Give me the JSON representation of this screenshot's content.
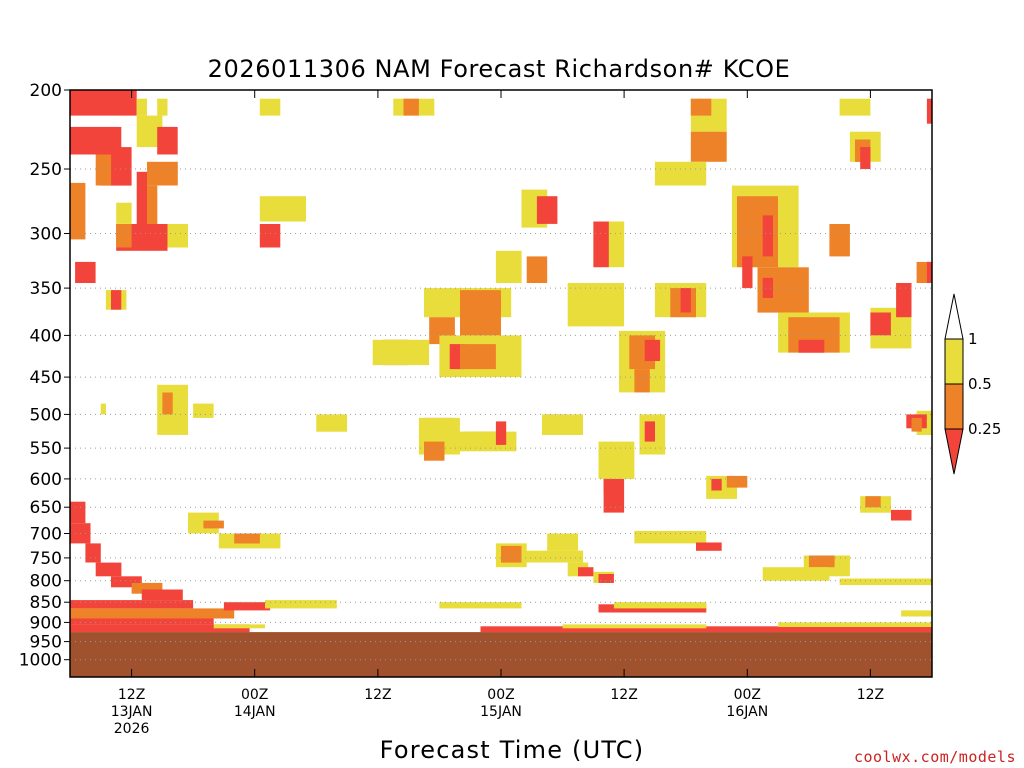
{
  "chart_data": {
    "type": "heatmap",
    "title": "2026011306 NAM Forecast Richardson# KCOE",
    "xlabel": "Forecast Time (UTC)",
    "ylabel": "",
    "y_scale": "log",
    "y_inverted": true,
    "y_ticks": [
      200,
      250,
      300,
      350,
      400,
      450,
      500,
      550,
      600,
      650,
      700,
      750,
      800,
      850,
      900,
      950,
      1000
    ],
    "ylim": [
      200,
      1050
    ],
    "x_ticks": [
      {
        "hour": 6,
        "lines": [
          "12Z",
          "13JAN",
          "2026"
        ]
      },
      {
        "hour": 18,
        "lines": [
          "00Z",
          "14JAN"
        ]
      },
      {
        "hour": 30,
        "lines": [
          "12Z"
        ]
      },
      {
        "hour": 42,
        "lines": [
          "00Z",
          "15JAN"
        ]
      },
      {
        "hour": 54,
        "lines": [
          "12Z"
        ]
      },
      {
        "hour": 66,
        "lines": [
          "00Z",
          "16JAN"
        ]
      },
      {
        "hour": 78,
        "lines": [
          "12Z"
        ]
      }
    ],
    "xlim": [
      0,
      84
    ],
    "levels_legend": [
      {
        "label": "1",
        "value": 1,
        "color": "#e8dd3a"
      },
      {
        "label": "0.5",
        "value": 0.5,
        "color": "#ee8228"
      },
      {
        "label": "0.25",
        "value": 0.25,
        "color": "#f2443a"
      }
    ],
    "arrow_top_color": "#ffffff",
    "arrow_bottom_color": "#f2443a",
    "ground_color": "#a0512d",
    "ground_top_pressure": 925,
    "grid_lines": "dotted horizontal at pressure ticks",
    "cells": [
      {
        "x0": 0,
        "x1": 6.5,
        "p0": 200,
        "p1": 215,
        "c": "r"
      },
      {
        "x0": 0,
        "x1": 5,
        "p0": 222,
        "p1": 240,
        "c": "r"
      },
      {
        "x0": 3,
        "x1": 6,
        "p0": 235,
        "p1": 262,
        "c": "r"
      },
      {
        "x0": 2.5,
        "x1": 4,
        "p0": 240,
        "p1": 262,
        "c": "o"
      },
      {
        "x0": 6.5,
        "x1": 9,
        "p0": 215,
        "p1": 235,
        "c": "y"
      },
      {
        "x0": 8.5,
        "x1": 10.5,
        "p0": 222,
        "p1": 240,
        "c": "r"
      },
      {
        "x0": 7.5,
        "x1": 10.5,
        "p0": 245,
        "p1": 262,
        "c": "o"
      },
      {
        "x0": 6.5,
        "x1": 7.5,
        "p0": 252,
        "p1": 295,
        "c": "r"
      },
      {
        "x0": 7.5,
        "x1": 8.5,
        "p0": 262,
        "p1": 295,
        "c": "o"
      },
      {
        "x0": 4.5,
        "x1": 6,
        "p0": 275,
        "p1": 292,
        "c": "y"
      },
      {
        "x0": 0,
        "x1": 1.5,
        "p0": 260,
        "p1": 305,
        "c": "o"
      },
      {
        "x0": 4.5,
        "x1": 9.5,
        "p0": 292,
        "p1": 315,
        "c": "r"
      },
      {
        "x0": 4.5,
        "x1": 6,
        "p0": 292,
        "p1": 312,
        "c": "o"
      },
      {
        "x0": 9.5,
        "x1": 11.5,
        "p0": 292,
        "p1": 312,
        "c": "y"
      },
      {
        "x0": 0.5,
        "x1": 2.5,
        "p0": 325,
        "p1": 345,
        "c": "r"
      },
      {
        "x0": 3.5,
        "x1": 5.5,
        "p0": 352,
        "p1": 372,
        "c": "y"
      },
      {
        "x0": 4,
        "x1": 5,
        "p0": 352,
        "p1": 372,
        "c": "r"
      },
      {
        "x0": 6.5,
        "x1": 7.5,
        "p0": 205,
        "p1": 215,
        "c": "y"
      },
      {
        "x0": 8.5,
        "x1": 9.5,
        "p0": 205,
        "p1": 215,
        "c": "y"
      },
      {
        "x0": 18.5,
        "x1": 20.5,
        "p0": 292,
        "p1": 312,
        "c": "r"
      },
      {
        "x0": 18.5,
        "x1": 23,
        "p0": 270,
        "p1": 290,
        "c": "y"
      },
      {
        "x0": 18.5,
        "x1": 20.5,
        "p0": 205,
        "p1": 215,
        "c": "y"
      },
      {
        "x0": 31.5,
        "x1": 35.5,
        "p0": 205,
        "p1": 215,
        "c": "y"
      },
      {
        "x0": 32.5,
        "x1": 34,
        "p0": 205,
        "p1": 215,
        "c": "o"
      },
      {
        "x0": 34.5,
        "x1": 43,
        "p0": 350,
        "p1": 380,
        "c": "y"
      },
      {
        "x0": 38,
        "x1": 42,
        "p0": 352,
        "p1": 400,
        "c": "o"
      },
      {
        "x0": 35,
        "x1": 37.5,
        "p0": 380,
        "p1": 410,
        "c": "o"
      },
      {
        "x0": 36,
        "x1": 44,
        "p0": 400,
        "p1": 450,
        "c": "y"
      },
      {
        "x0": 37,
        "x1": 38.5,
        "p0": 410,
        "p1": 440,
        "c": "r"
      },
      {
        "x0": 38,
        "x1": 41.5,
        "p0": 410,
        "p1": 440,
        "c": "o"
      },
      {
        "x0": 30.5,
        "x1": 33,
        "p0": 405,
        "p1": 435,
        "c": "r"
      },
      {
        "x0": 29.5,
        "x1": 35,
        "p0": 405,
        "p1": 435,
        "c": "y"
      },
      {
        "x0": 41.5,
        "x1": 44,
        "p0": 315,
        "p1": 345,
        "c": "y"
      },
      {
        "x0": 44.5,
        "x1": 46.5,
        "p0": 320,
        "p1": 345,
        "c": "o"
      },
      {
        "x0": 44,
        "x1": 46.5,
        "p0": 265,
        "p1": 295,
        "c": "y"
      },
      {
        "x0": 45.5,
        "x1": 47.5,
        "p0": 270,
        "p1": 292,
        "c": "r"
      },
      {
        "x0": 51,
        "x1": 54,
        "p0": 290,
        "p1": 330,
        "c": "y"
      },
      {
        "x0": 51,
        "x1": 52.5,
        "p0": 290,
        "p1": 330,
        "c": "r"
      },
      {
        "x0": 49.5,
        "x1": 51.5,
        "p0": 345,
        "p1": 380,
        "c": "r"
      },
      {
        "x0": 48.5,
        "x1": 54,
        "p0": 345,
        "p1": 390,
        "c": "y"
      },
      {
        "x0": 53.5,
        "x1": 58,
        "p0": 395,
        "p1": 470,
        "c": "y"
      },
      {
        "x0": 54.5,
        "x1": 57,
        "p0": 400,
        "p1": 440,
        "c": "o"
      },
      {
        "x0": 56,
        "x1": 57.5,
        "p0": 405,
        "p1": 430,
        "c": "r"
      },
      {
        "x0": 55,
        "x1": 56.5,
        "p0": 440,
        "p1": 470,
        "c": "o"
      },
      {
        "x0": 57,
        "x1": 62,
        "p0": 345,
        "p1": 380,
        "c": "y"
      },
      {
        "x0": 58.5,
        "x1": 61,
        "p0": 350,
        "p1": 380,
        "c": "o"
      },
      {
        "x0": 59.5,
        "x1": 60.5,
        "p0": 350,
        "p1": 375,
        "c": "r"
      },
      {
        "x0": 60.5,
        "x1": 64,
        "p0": 205,
        "p1": 225,
        "c": "y"
      },
      {
        "x0": 60.5,
        "x1": 62.5,
        "p0": 205,
        "p1": 215,
        "c": "o"
      },
      {
        "x0": 60.5,
        "x1": 64,
        "p0": 225,
        "p1": 245,
        "c": "o"
      },
      {
        "x0": 57,
        "x1": 62,
        "p0": 245,
        "p1": 262,
        "c": "y"
      },
      {
        "x0": 64.5,
        "x1": 71,
        "p0": 262,
        "p1": 330,
        "c": "y"
      },
      {
        "x0": 65,
        "x1": 69,
        "p0": 270,
        "p1": 330,
        "c": "o"
      },
      {
        "x0": 67.5,
        "x1": 68.5,
        "p0": 285,
        "p1": 320,
        "c": "r"
      },
      {
        "x0": 65.5,
        "x1": 66.5,
        "p0": 320,
        "p1": 350,
        "c": "r"
      },
      {
        "x0": 67,
        "x1": 72,
        "p0": 330,
        "p1": 375,
        "c": "o"
      },
      {
        "x0": 67.5,
        "x1": 68.5,
        "p0": 340,
        "p1": 360,
        "c": "r"
      },
      {
        "x0": 69,
        "x1": 76,
        "p0": 375,
        "p1": 420,
        "c": "y"
      },
      {
        "x0": 70,
        "x1": 75,
        "p0": 380,
        "p1": 420,
        "c": "o"
      },
      {
        "x0": 71,
        "x1": 73.5,
        "p0": 405,
        "p1": 420,
        "c": "r"
      },
      {
        "x0": 74,
        "x1": 76,
        "p0": 292,
        "p1": 320,
        "c": "o"
      },
      {
        "x0": 78,
        "x1": 82,
        "p0": 370,
        "p1": 415,
        "c": "y"
      },
      {
        "x0": 78,
        "x1": 80,
        "p0": 375,
        "p1": 400,
        "c": "r"
      },
      {
        "x0": 80.5,
        "x1": 82,
        "p0": 345,
        "p1": 380,
        "c": "r"
      },
      {
        "x0": 82.5,
        "x1": 84,
        "p0": 325,
        "p1": 345,
        "c": "o"
      },
      {
        "x0": 83.5,
        "x1": 84,
        "p0": 325,
        "p1": 345,
        "c": "r"
      },
      {
        "x0": 75,
        "x1": 78,
        "p0": 205,
        "p1": 215,
        "c": "y"
      },
      {
        "x0": 76,
        "x1": 79,
        "p0": 225,
        "p1": 245,
        "c": "y"
      },
      {
        "x0": 76.5,
        "x1": 78,
        "p0": 230,
        "p1": 245,
        "c": "o"
      },
      {
        "x0": 77,
        "x1": 78,
        "p0": 235,
        "p1": 250,
        "c": "r"
      },
      {
        "x0": 83.5,
        "x1": 84,
        "p0": 205,
        "p1": 220,
        "c": "r"
      },
      {
        "x0": 34.5,
        "x1": 37.5,
        "p0": 505,
        "p1": 530,
        "c": "r"
      },
      {
        "x0": 34,
        "x1": 38,
        "p0": 505,
        "p1": 560,
        "c": "y"
      },
      {
        "x0": 34.5,
        "x1": 36.5,
        "p0": 540,
        "p1": 570,
        "c": "o"
      },
      {
        "x0": 38.5,
        "x1": 42,
        "p0": 525,
        "p1": 550,
        "c": "o"
      },
      {
        "x0": 37.5,
        "x1": 43.5,
        "p0": 525,
        "p1": 555,
        "c": "y"
      },
      {
        "x0": 41.5,
        "x1": 42.5,
        "p0": 510,
        "p1": 545,
        "c": "r"
      },
      {
        "x0": 46.5,
        "x1": 48.5,
        "p0": 500,
        "p1": 530,
        "c": "r"
      },
      {
        "x0": 46,
        "x1": 50,
        "p0": 500,
        "p1": 530,
        "c": "y"
      },
      {
        "x0": 52,
        "x1": 54,
        "p0": 600,
        "p1": 660,
        "c": "r"
      },
      {
        "x0": 51.5,
        "x1": 55,
        "p0": 540,
        "p1": 600,
        "c": "y"
      },
      {
        "x0": 52,
        "x1": 53,
        "p0": 600,
        "p1": 625,
        "c": "r"
      },
      {
        "x0": 55.5,
        "x1": 58,
        "p0": 500,
        "p1": 560,
        "c": "y"
      },
      {
        "x0": 56,
        "x1": 57,
        "p0": 510,
        "p1": 540,
        "c": "r"
      },
      {
        "x0": 62,
        "x1": 65,
        "p0": 595,
        "p1": 635,
        "c": "y"
      },
      {
        "x0": 64,
        "x1": 66,
        "p0": 595,
        "p1": 615,
        "c": "o"
      },
      {
        "x0": 62.5,
        "x1": 63.5,
        "p0": 600,
        "p1": 620,
        "c": "r"
      },
      {
        "x0": 77,
        "x1": 80,
        "p0": 630,
        "p1": 660,
        "c": "y"
      },
      {
        "x0": 77.5,
        "x1": 79,
        "p0": 630,
        "p1": 650,
        "c": "o"
      },
      {
        "x0": 80,
        "x1": 82,
        "p0": 655,
        "p1": 675,
        "c": "r"
      },
      {
        "x0": 82.5,
        "x1": 84,
        "p0": 495,
        "p1": 530,
        "c": "y"
      },
      {
        "x0": 81.5,
        "x1": 83.5,
        "p0": 500,
        "p1": 520,
        "c": "r"
      },
      {
        "x0": 82,
        "x1": 83,
        "p0": 505,
        "p1": 525,
        "c": "o"
      },
      {
        "x0": 8.5,
        "x1": 11.5,
        "p0": 460,
        "p1": 530,
        "c": "y"
      },
      {
        "x0": 9,
        "x1": 10,
        "p0": 470,
        "p1": 500,
        "c": "o"
      },
      {
        "x0": 12,
        "x1": 14,
        "p0": 485,
        "p1": 505,
        "c": "y"
      },
      {
        "x0": 3,
        "x1": 3.5,
        "p0": 485,
        "p1": 500,
        "c": "y"
      },
      {
        "x0": 24,
        "x1": 27,
        "p0": 500,
        "p1": 525,
        "c": "y"
      },
      {
        "x0": 11.5,
        "x1": 14.5,
        "p0": 660,
        "p1": 700,
        "c": "y"
      },
      {
        "x0": 13,
        "x1": 15,
        "p0": 675,
        "p1": 690,
        "c": "o"
      },
      {
        "x0": 14.5,
        "x1": 20.5,
        "p0": 700,
        "p1": 730,
        "c": "y"
      },
      {
        "x0": 16,
        "x1": 18.5,
        "p0": 700,
        "p1": 720,
        "c": "o"
      },
      {
        "x0": 41.5,
        "x1": 44.5,
        "p0": 720,
        "p1": 770,
        "c": "y"
      },
      {
        "x0": 42,
        "x1": 44,
        "p0": 725,
        "p1": 760,
        "c": "o"
      },
      {
        "x0": 44,
        "x1": 50,
        "p0": 735,
        "p1": 760,
        "c": "y"
      },
      {
        "x0": 46.5,
        "x1": 49.5,
        "p0": 700,
        "p1": 735,
        "c": "y"
      },
      {
        "x0": 48.5,
        "x1": 50.5,
        "p0": 760,
        "p1": 790,
        "c": "y"
      },
      {
        "x0": 49.5,
        "x1": 51,
        "p0": 770,
        "p1": 790,
        "c": "r"
      },
      {
        "x0": 51,
        "x1": 53,
        "p0": 780,
        "p1": 805,
        "c": "y"
      },
      {
        "x0": 51.5,
        "x1": 53,
        "p0": 785,
        "p1": 805,
        "c": "r"
      },
      {
        "x0": 55,
        "x1": 62,
        "p0": 695,
        "p1": 720,
        "c": "y"
      },
      {
        "x0": 61,
        "x1": 63.5,
        "p0": 718,
        "p1": 735,
        "c": "r"
      },
      {
        "x0": 71.5,
        "x1": 76,
        "p0": 745,
        "p1": 790,
        "c": "y"
      },
      {
        "x0": 72,
        "x1": 74.5,
        "p0": 745,
        "p1": 770,
        "c": "o"
      },
      {
        "x0": 67.5,
        "x1": 74,
        "p0": 770,
        "p1": 800,
        "c": "y"
      },
      {
        "x0": 75,
        "x1": 84,
        "p0": 795,
        "p1": 810,
        "c": "y"
      },
      {
        "x0": 81,
        "x1": 84,
        "p0": 870,
        "p1": 885,
        "c": "y"
      },
      {
        "x0": 0,
        "x1": 1.5,
        "p0": 640,
        "p1": 680,
        "c": "r"
      },
      {
        "x0": 0,
        "x1": 2,
        "p0": 680,
        "p1": 720,
        "c": "r"
      },
      {
        "x0": 1.5,
        "x1": 3,
        "p0": 720,
        "p1": 760,
        "c": "r"
      },
      {
        "x0": 2.5,
        "x1": 5,
        "p0": 760,
        "p1": 790,
        "c": "r"
      },
      {
        "x0": 4,
        "x1": 7,
        "p0": 790,
        "p1": 815,
        "c": "r"
      },
      {
        "x0": 6,
        "x1": 9,
        "p0": 805,
        "p1": 830,
        "c": "o"
      },
      {
        "x0": 7,
        "x1": 11,
        "p0": 820,
        "p1": 845,
        "c": "r"
      },
      {
        "x0": 0,
        "x1": 12,
        "p0": 845,
        "p1": 865,
        "c": "r"
      },
      {
        "x0": 0,
        "x1": 16,
        "p0": 865,
        "p1": 890,
        "c": "o"
      },
      {
        "x0": 0,
        "x1": 14,
        "p0": 890,
        "p1": 905,
        "c": "r"
      },
      {
        "x0": 0,
        "x1": 17.5,
        "p0": 905,
        "p1": 925,
        "c": "r"
      },
      {
        "x0": 14,
        "x1": 19,
        "p0": 905,
        "p1": 915,
        "c": "y"
      },
      {
        "x0": 15,
        "x1": 19.5,
        "p0": 850,
        "p1": 870,
        "c": "r"
      },
      {
        "x0": 19,
        "x1": 26,
        "p0": 845,
        "p1": 865,
        "c": "y"
      },
      {
        "x0": 36,
        "x1": 44,
        "p0": 850,
        "p1": 865,
        "c": "y"
      },
      {
        "x0": 51.5,
        "x1": 62,
        "p0": 855,
        "p1": 875,
        "c": "r"
      },
      {
        "x0": 53,
        "x1": 62,
        "p0": 850,
        "p1": 865,
        "c": "y"
      },
      {
        "x0": 40,
        "x1": 84,
        "p0": 910,
        "p1": 925,
        "c": "r"
      },
      {
        "x0": 48,
        "x1": 62,
        "p0": 905,
        "p1": 915,
        "c": "y"
      },
      {
        "x0": 69,
        "x1": 84,
        "p0": 900,
        "p1": 912,
        "c": "y"
      },
      {
        "x0": 66,
        "x1": 84,
        "p0": 912,
        "p1": 925,
        "c": "r"
      }
    ]
  }
}
